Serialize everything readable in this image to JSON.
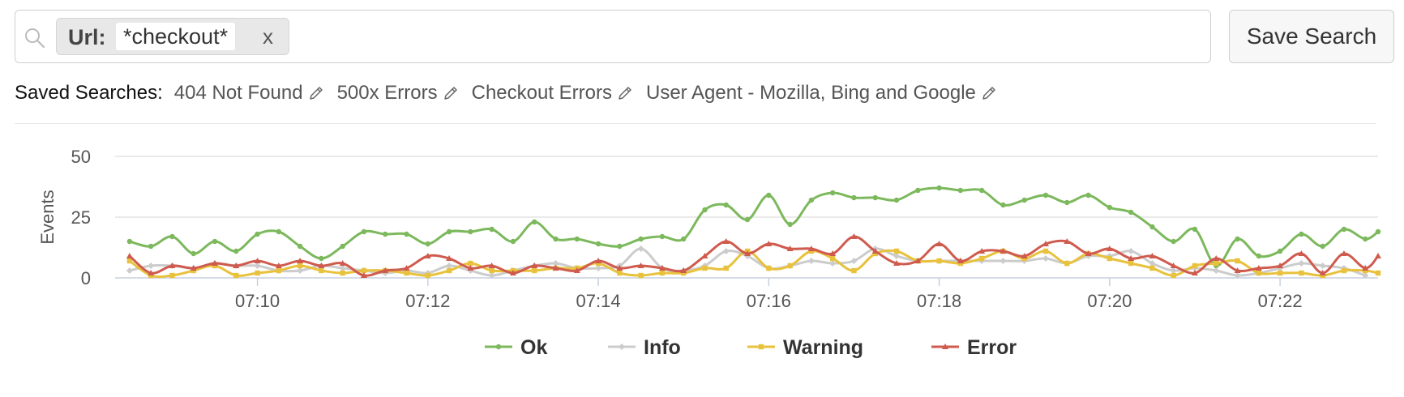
{
  "search": {
    "tag_key": "Url:",
    "tag_value": "*checkout*",
    "tag_close": "x",
    "save_label": "Save Search"
  },
  "saved_searches": {
    "label": "Saved Searches:",
    "items": [
      "404 Not Found",
      "500x Errors",
      "Checkout Errors",
      "User Agent - Mozilla, Bing and Google"
    ]
  },
  "chart_data": {
    "type": "line",
    "title": "",
    "xlabel": "",
    "ylabel": "Events",
    "x_range": [
      488.33,
      503.15
    ],
    "ylim": [
      0,
      50
    ],
    "y_ticks": [
      0,
      25,
      50
    ],
    "x_ticks": [
      490,
      492,
      494,
      496,
      498,
      500,
      502
    ],
    "x_tick_labels": [
      "07:10",
      "07:12",
      "07:14",
      "07:16",
      "07:18",
      "07:20",
      "07:22"
    ],
    "grid": "horizontal",
    "legend_position": "bottom",
    "series": [
      {
        "name": "Ok",
        "color": "#7cb85c",
        "marker": "circle",
        "points": [
          [
            488.5,
            15
          ],
          [
            488.75,
            13
          ],
          [
            489,
            17
          ],
          [
            489.25,
            10
          ],
          [
            489.5,
            15
          ],
          [
            489.75,
            11
          ],
          [
            490,
            18
          ],
          [
            490.25,
            19
          ],
          [
            490.5,
            13
          ],
          [
            490.75,
            8
          ],
          [
            491,
            13
          ],
          [
            491.25,
            19
          ],
          [
            491.5,
            18
          ],
          [
            491.75,
            18
          ],
          [
            492,
            14
          ],
          [
            492.25,
            19
          ],
          [
            492.5,
            19
          ],
          [
            492.75,
            20
          ],
          [
            493,
            15
          ],
          [
            493.25,
            23
          ],
          [
            493.5,
            16
          ],
          [
            493.75,
            16
          ],
          [
            494,
            14
          ],
          [
            494.25,
            13
          ],
          [
            494.5,
            16
          ],
          [
            494.75,
            17
          ],
          [
            495,
            16
          ],
          [
            495.25,
            28
          ],
          [
            495.5,
            30
          ],
          [
            495.75,
            24
          ],
          [
            496,
            34
          ],
          [
            496.25,
            22
          ],
          [
            496.5,
            32
          ],
          [
            496.75,
            35
          ],
          [
            497,
            33
          ],
          [
            497.25,
            33
          ],
          [
            497.5,
            32
          ],
          [
            497.75,
            36
          ],
          [
            498,
            37
          ],
          [
            498.25,
            36
          ],
          [
            498.5,
            36
          ],
          [
            498.75,
            30
          ],
          [
            499,
            32
          ],
          [
            499.25,
            34
          ],
          [
            499.5,
            31
          ],
          [
            499.75,
            34
          ],
          [
            500,
            29
          ],
          [
            500.25,
            27
          ],
          [
            500.5,
            21
          ],
          [
            500.75,
            15
          ],
          [
            501,
            20
          ],
          [
            501.25,
            5
          ],
          [
            501.5,
            16
          ],
          [
            501.75,
            9
          ],
          [
            502,
            11
          ],
          [
            502.25,
            18
          ],
          [
            502.5,
            13
          ],
          [
            502.75,
            20
          ],
          [
            503,
            16
          ],
          [
            503.15,
            19
          ]
        ]
      },
      {
        "name": "Info",
        "color": "#cccccc",
        "marker": "diamond",
        "points": [
          [
            488.5,
            3
          ],
          [
            488.75,
            5
          ],
          [
            489,
            5
          ],
          [
            489.25,
            4
          ],
          [
            489.5,
            6
          ],
          [
            489.75,
            5
          ],
          [
            490,
            5
          ],
          [
            490.25,
            3
          ],
          [
            490.5,
            3
          ],
          [
            490.75,
            5
          ],
          [
            491,
            4
          ],
          [
            491.25,
            3
          ],
          [
            491.5,
            2
          ],
          [
            491.75,
            3
          ],
          [
            492,
            2
          ],
          [
            492.25,
            5
          ],
          [
            492.5,
            3
          ],
          [
            492.75,
            1
          ],
          [
            493,
            3
          ],
          [
            493.25,
            5
          ],
          [
            493.5,
            6
          ],
          [
            493.75,
            4
          ],
          [
            494,
            4
          ],
          [
            494.25,
            5
          ],
          [
            494.5,
            12
          ],
          [
            494.75,
            4
          ],
          [
            495,
            3
          ],
          [
            495.25,
            5
          ],
          [
            495.5,
            11
          ],
          [
            495.75,
            9
          ],
          [
            496,
            4
          ],
          [
            496.25,
            5
          ],
          [
            496.5,
            7
          ],
          [
            496.75,
            6
          ],
          [
            497,
            7
          ],
          [
            497.25,
            12
          ],
          [
            497.5,
            9
          ],
          [
            497.75,
            7
          ],
          [
            498,
            7
          ],
          [
            498.25,
            7
          ],
          [
            498.5,
            7
          ],
          [
            498.75,
            7
          ],
          [
            499,
            7
          ],
          [
            499.25,
            8
          ],
          [
            499.5,
            6
          ],
          [
            499.75,
            9
          ],
          [
            500,
            9
          ],
          [
            500.25,
            11
          ],
          [
            500.5,
            6
          ],
          [
            500.75,
            3
          ],
          [
            501,
            4
          ],
          [
            501.25,
            3
          ],
          [
            501.5,
            1
          ],
          [
            501.75,
            2
          ],
          [
            502,
            4
          ],
          [
            502.25,
            6
          ],
          [
            502.5,
            5
          ],
          [
            502.75,
            4
          ],
          [
            503,
            1
          ]
        ]
      },
      {
        "name": "Warning",
        "color": "#e8c23c",
        "marker": "square",
        "points": [
          [
            488.5,
            7
          ],
          [
            488.75,
            1
          ],
          [
            489,
            1
          ],
          [
            489.25,
            3
          ],
          [
            489.5,
            5
          ],
          [
            489.75,
            1
          ],
          [
            490,
            2
          ],
          [
            490.25,
            3
          ],
          [
            490.5,
            5
          ],
          [
            490.75,
            3
          ],
          [
            491,
            2
          ],
          [
            491.25,
            3
          ],
          [
            491.5,
            3
          ],
          [
            491.75,
            2
          ],
          [
            492,
            1
          ],
          [
            492.25,
            3
          ],
          [
            492.5,
            6
          ],
          [
            492.75,
            3
          ],
          [
            493,
            3
          ],
          [
            493.25,
            3
          ],
          [
            493.5,
            4
          ],
          [
            493.75,
            4
          ],
          [
            494,
            6
          ],
          [
            494.25,
            2
          ],
          [
            494.5,
            1
          ],
          [
            494.75,
            2
          ],
          [
            495,
            2
          ],
          [
            495.25,
            4
          ],
          [
            495.5,
            4
          ],
          [
            495.75,
            11
          ],
          [
            496,
            4
          ],
          [
            496.25,
            5
          ],
          [
            496.5,
            11
          ],
          [
            496.75,
            8
          ],
          [
            497,
            3
          ],
          [
            497.25,
            10
          ],
          [
            497.5,
            11
          ],
          [
            497.75,
            7
          ],
          [
            498,
            7
          ],
          [
            498.25,
            6
          ],
          [
            498.5,
            8
          ],
          [
            498.75,
            11
          ],
          [
            499,
            8
          ],
          [
            499.25,
            11
          ],
          [
            499.5,
            6
          ],
          [
            499.75,
            10
          ],
          [
            500,
            8
          ],
          [
            500.25,
            6
          ],
          [
            500.5,
            4
          ],
          [
            500.75,
            1
          ],
          [
            501,
            5
          ],
          [
            501.25,
            6
          ],
          [
            501.5,
            7
          ],
          [
            501.75,
            2
          ],
          [
            502,
            2
          ],
          [
            502.25,
            2
          ],
          [
            502.5,
            1
          ],
          [
            502.75,
            3
          ],
          [
            503,
            3
          ],
          [
            503.15,
            2
          ]
        ]
      },
      {
        "name": "Error",
        "color": "#cf5b4e",
        "marker": "triangle",
        "points": [
          [
            488.5,
            9
          ],
          [
            488.75,
            2
          ],
          [
            489,
            5
          ],
          [
            489.25,
            4
          ],
          [
            489.5,
            6
          ],
          [
            489.75,
            5
          ],
          [
            490,
            7
          ],
          [
            490.25,
            5
          ],
          [
            490.5,
            7
          ],
          [
            490.75,
            5
          ],
          [
            491,
            6
          ],
          [
            491.25,
            1
          ],
          [
            491.5,
            3
          ],
          [
            491.75,
            4
          ],
          [
            492,
            9
          ],
          [
            492.25,
            8
          ],
          [
            492.5,
            4
          ],
          [
            492.75,
            5
          ],
          [
            493,
            2
          ],
          [
            493.25,
            5
          ],
          [
            493.5,
            4
          ],
          [
            493.75,
            3
          ],
          [
            494,
            7
          ],
          [
            494.25,
            4
          ],
          [
            494.5,
            5
          ],
          [
            494.75,
            4
          ],
          [
            495,
            3
          ],
          [
            495.25,
            9
          ],
          [
            495.5,
            15
          ],
          [
            495.75,
            10
          ],
          [
            496,
            14
          ],
          [
            496.25,
            12
          ],
          [
            496.5,
            12
          ],
          [
            496.75,
            10
          ],
          [
            497,
            17
          ],
          [
            497.25,
            11
          ],
          [
            497.5,
            6
          ],
          [
            497.75,
            7
          ],
          [
            498,
            14
          ],
          [
            498.25,
            7
          ],
          [
            498.5,
            11
          ],
          [
            498.75,
            11
          ],
          [
            499,
            9
          ],
          [
            499.25,
            14
          ],
          [
            499.5,
            15
          ],
          [
            499.75,
            10
          ],
          [
            500,
            12
          ],
          [
            500.25,
            8
          ],
          [
            500.5,
            9
          ],
          [
            500.75,
            5
          ],
          [
            501,
            2
          ],
          [
            501.25,
            8
          ],
          [
            501.5,
            3
          ],
          [
            501.75,
            4
          ],
          [
            502,
            5
          ],
          [
            502.25,
            10
          ],
          [
            502.5,
            2
          ],
          [
            502.75,
            10
          ],
          [
            503,
            4
          ],
          [
            503.15,
            9
          ]
        ]
      }
    ]
  }
}
